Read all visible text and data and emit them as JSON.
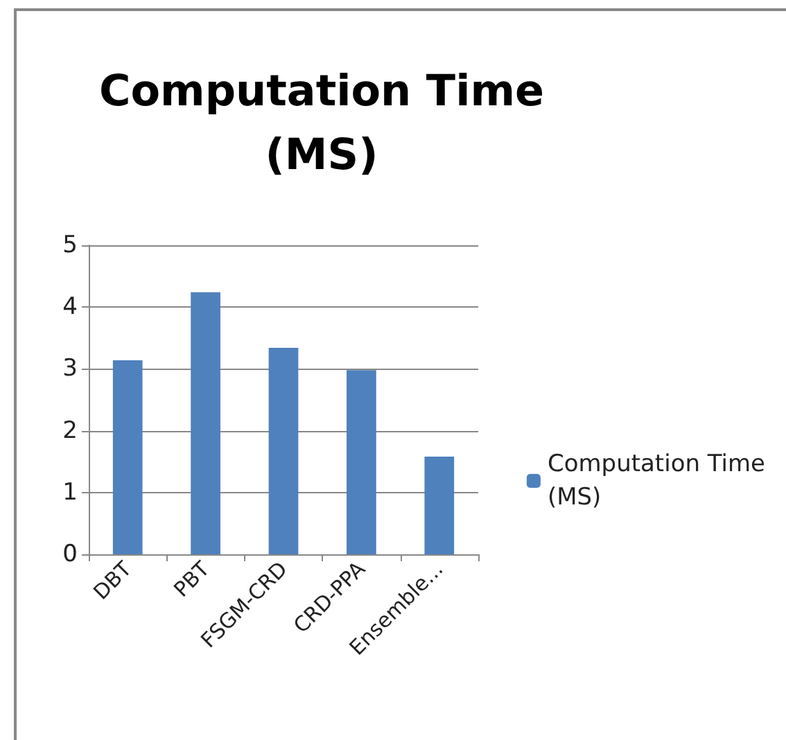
{
  "chart_data": {
    "type": "bar",
    "title": "Computation Time\n(MS)",
    "categories": [
      "DBT",
      "PBT",
      "FSGM-CRD",
      "CRD-PPA",
      "Ensemble..."
    ],
    "series": [
      {
        "name": "Computation Time (MS)",
        "color": "#4f81bd",
        "values": [
          3.14,
          4.24,
          3.34,
          2.98,
          1.58
        ]
      }
    ],
    "ylim": [
      0,
      5
    ],
    "yticks": [
      0,
      1,
      2,
      3,
      4,
      5
    ],
    "grid": "y",
    "legend": "right"
  }
}
